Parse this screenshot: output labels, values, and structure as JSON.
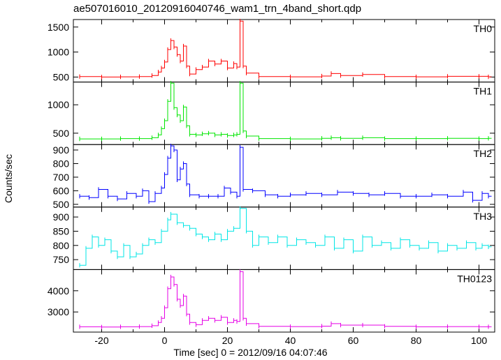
{
  "chart_data": {
    "type": "line",
    "title": "ae507016010_20120916040746_wam1_trn_4band_short.qdp",
    "xlabel": "Time [sec] 0 = 2012/09/16 04:07:46",
    "ylabel": "Counts/sec",
    "xlim": [
      -29,
      105
    ],
    "xticks": [
      -20,
      0,
      20,
      40,
      60,
      80,
      100
    ],
    "grid": false,
    "panels": [
      {
        "name": "TH0",
        "color": "#ff0000",
        "ylim": [
          400,
          1650
        ],
        "yticks": [
          500,
          1000,
          1500
        ],
        "series": [
          {
            "x": -27,
            "y": 510
          },
          {
            "x": -20,
            "y": 500
          },
          {
            "x": -14,
            "y": 505
          },
          {
            "x": -8,
            "y": 510
          },
          {
            "x": -4,
            "y": 530
          },
          {
            "x": -2,
            "y": 600
          },
          {
            "x": -1,
            "y": 680
          },
          {
            "x": 0,
            "y": 800
          },
          {
            "x": 1,
            "y": 1050
          },
          {
            "x": 2,
            "y": 1230
          },
          {
            "x": 3,
            "y": 1100
          },
          {
            "x": 4,
            "y": 950
          },
          {
            "x": 5,
            "y": 820
          },
          {
            "x": 6,
            "y": 1120
          },
          {
            "x": 7,
            "y": 720
          },
          {
            "x": 8,
            "y": 560
          },
          {
            "x": 10,
            "y": 650
          },
          {
            "x": 12,
            "y": 700
          },
          {
            "x": 14,
            "y": 820
          },
          {
            "x": 16,
            "y": 760
          },
          {
            "x": 18,
            "y": 820
          },
          {
            "x": 20,
            "y": 680
          },
          {
            "x": 22,
            "y": 770
          },
          {
            "x": 23,
            "y": 700
          },
          {
            "x": 24,
            "y": 1620
          },
          {
            "x": 25,
            "y": 720
          },
          {
            "x": 26,
            "y": 580
          },
          {
            "x": 30,
            "y": 510
          },
          {
            "x": 40,
            "y": 505
          },
          {
            "x": 50,
            "y": 520
          },
          {
            "x": 53,
            "y": 570
          },
          {
            "x": 56,
            "y": 530
          },
          {
            "x": 63,
            "y": 550
          },
          {
            "x": 70,
            "y": 510
          },
          {
            "x": 80,
            "y": 505
          },
          {
            "x": 90,
            "y": 515
          },
          {
            "x": 100,
            "y": 515
          },
          {
            "x": 103,
            "y": 505
          }
        ]
      },
      {
        "name": "TH1",
        "color": "#00e600",
        "ylim": [
          300,
          1400
        ],
        "yticks": [
          500,
          1000
        ],
        "series": [
          {
            "x": -27,
            "y": 400
          },
          {
            "x": -20,
            "y": 400
          },
          {
            "x": -14,
            "y": 405
          },
          {
            "x": -8,
            "y": 405
          },
          {
            "x": -4,
            "y": 420
          },
          {
            "x": -2,
            "y": 470
          },
          {
            "x": -1,
            "y": 580
          },
          {
            "x": 0,
            "y": 720
          },
          {
            "x": 1,
            "y": 1060
          },
          {
            "x": 2,
            "y": 1380
          },
          {
            "x": 3,
            "y": 950
          },
          {
            "x": 4,
            "y": 820
          },
          {
            "x": 5,
            "y": 720
          },
          {
            "x": 6,
            "y": 960
          },
          {
            "x": 7,
            "y": 630
          },
          {
            "x": 8,
            "y": 480
          },
          {
            "x": 10,
            "y": 470
          },
          {
            "x": 12,
            "y": 490
          },
          {
            "x": 14,
            "y": 500
          },
          {
            "x": 16,
            "y": 470
          },
          {
            "x": 18,
            "y": 480
          },
          {
            "x": 20,
            "y": 460
          },
          {
            "x": 22,
            "y": 470
          },
          {
            "x": 23,
            "y": 480
          },
          {
            "x": 24,
            "y": 1380
          },
          {
            "x": 25,
            "y": 540
          },
          {
            "x": 26,
            "y": 450
          },
          {
            "x": 30,
            "y": 405
          },
          {
            "x": 40,
            "y": 400
          },
          {
            "x": 50,
            "y": 410
          },
          {
            "x": 53,
            "y": 420
          },
          {
            "x": 56,
            "y": 410
          },
          {
            "x": 63,
            "y": 420
          },
          {
            "x": 70,
            "y": 405
          },
          {
            "x": 80,
            "y": 405
          },
          {
            "x": 90,
            "y": 410
          },
          {
            "x": 100,
            "y": 405
          },
          {
            "x": 103,
            "y": 410
          }
        ]
      },
      {
        "name": "TH2",
        "color": "#0000ff",
        "ylim": [
          480,
          940
        ],
        "yticks": [
          500,
          600,
          700,
          800,
          900
        ],
        "series": [
          {
            "x": -27,
            "y": 560
          },
          {
            "x": -24,
            "y": 550
          },
          {
            "x": -21,
            "y": 610
          },
          {
            "x": -18,
            "y": 560
          },
          {
            "x": -15,
            "y": 540
          },
          {
            "x": -12,
            "y": 580
          },
          {
            "x": -9,
            "y": 560
          },
          {
            "x": -7,
            "y": 600
          },
          {
            "x": -5,
            "y": 520
          },
          {
            "x": -3,
            "y": 580
          },
          {
            "x": -1,
            "y": 620
          },
          {
            "x": 0,
            "y": 720
          },
          {
            "x": 1,
            "y": 840
          },
          {
            "x": 2,
            "y": 930
          },
          {
            "x": 3,
            "y": 900
          },
          {
            "x": 4,
            "y": 680
          },
          {
            "x": 5,
            "y": 760
          },
          {
            "x": 6,
            "y": 800
          },
          {
            "x": 7,
            "y": 650
          },
          {
            "x": 8,
            "y": 570
          },
          {
            "x": 11,
            "y": 560
          },
          {
            "x": 14,
            "y": 560
          },
          {
            "x": 17,
            "y": 560
          },
          {
            "x": 19,
            "y": 620
          },
          {
            "x": 21,
            "y": 590
          },
          {
            "x": 23,
            "y": 560
          },
          {
            "x": 24,
            "y": 920
          },
          {
            "x": 25,
            "y": 610
          },
          {
            "x": 28,
            "y": 600
          },
          {
            "x": 32,
            "y": 570
          },
          {
            "x": 36,
            "y": 560
          },
          {
            "x": 40,
            "y": 570
          },
          {
            "x": 45,
            "y": 580
          },
          {
            "x": 50,
            "y": 570
          },
          {
            "x": 55,
            "y": 590
          },
          {
            "x": 60,
            "y": 580
          },
          {
            "x": 65,
            "y": 570
          },
          {
            "x": 70,
            "y": 580
          },
          {
            "x": 75,
            "y": 560
          },
          {
            "x": 80,
            "y": 560
          },
          {
            "x": 85,
            "y": 570
          },
          {
            "x": 90,
            "y": 560
          },
          {
            "x": 95,
            "y": 590
          },
          {
            "x": 98,
            "y": 530
          },
          {
            "x": 101,
            "y": 580
          },
          {
            "x": 103,
            "y": 560
          }
        ]
      },
      {
        "name": "TH3",
        "color": "#00e6e6",
        "ylim": [
          715,
          935
        ],
        "yticks": [
          750,
          800,
          850,
          900
        ],
        "series": [
          {
            "x": -27,
            "y": 730
          },
          {
            "x": -25,
            "y": 790
          },
          {
            "x": -23,
            "y": 830
          },
          {
            "x": -21,
            "y": 800
          },
          {
            "x": -19,
            "y": 820
          },
          {
            "x": -17,
            "y": 780
          },
          {
            "x": -15,
            "y": 760
          },
          {
            "x": -13,
            "y": 800
          },
          {
            "x": -11,
            "y": 760
          },
          {
            "x": -9,
            "y": 770
          },
          {
            "x": -7,
            "y": 800
          },
          {
            "x": -5,
            "y": 820
          },
          {
            "x": -3,
            "y": 810
          },
          {
            "x": -1,
            "y": 850
          },
          {
            "x": 1,
            "y": 890
          },
          {
            "x": 2,
            "y": 910
          },
          {
            "x": 4,
            "y": 880
          },
          {
            "x": 6,
            "y": 870
          },
          {
            "x": 8,
            "y": 860
          },
          {
            "x": 10,
            "y": 840
          },
          {
            "x": 12,
            "y": 830
          },
          {
            "x": 14,
            "y": 820
          },
          {
            "x": 16,
            "y": 840
          },
          {
            "x": 18,
            "y": 820
          },
          {
            "x": 20,
            "y": 850
          },
          {
            "x": 22,
            "y": 860
          },
          {
            "x": 24,
            "y": 930
          },
          {
            "x": 26,
            "y": 850
          },
          {
            "x": 28,
            "y": 800
          },
          {
            "x": 30,
            "y": 830
          },
          {
            "x": 33,
            "y": 810
          },
          {
            "x": 36,
            "y": 830
          },
          {
            "x": 39,
            "y": 800
          },
          {
            "x": 42,
            "y": 820
          },
          {
            "x": 45,
            "y": 810
          },
          {
            "x": 48,
            "y": 800
          },
          {
            "x": 51,
            "y": 830
          },
          {
            "x": 54,
            "y": 790
          },
          {
            "x": 57,
            "y": 820
          },
          {
            "x": 60,
            "y": 780
          },
          {
            "x": 63,
            "y": 830
          },
          {
            "x": 66,
            "y": 800
          },
          {
            "x": 69,
            "y": 810
          },
          {
            "x": 72,
            "y": 790
          },
          {
            "x": 75,
            "y": 820
          },
          {
            "x": 78,
            "y": 800
          },
          {
            "x": 81,
            "y": 790
          },
          {
            "x": 84,
            "y": 810
          },
          {
            "x": 87,
            "y": 780
          },
          {
            "x": 90,
            "y": 800
          },
          {
            "x": 93,
            "y": 790
          },
          {
            "x": 96,
            "y": 810
          },
          {
            "x": 99,
            "y": 790
          },
          {
            "x": 101,
            "y": 800
          },
          {
            "x": 103,
            "y": 795
          }
        ]
      },
      {
        "name": "TH0123",
        "color": "#e600e6",
        "ylim": [
          2050,
          5000
        ],
        "yticks": [
          3000,
          4000
        ],
        "series": [
          {
            "x": -27,
            "y": 2300
          },
          {
            "x": -20,
            "y": 2290
          },
          {
            "x": -14,
            "y": 2300
          },
          {
            "x": -8,
            "y": 2310
          },
          {
            "x": -4,
            "y": 2350
          },
          {
            "x": -2,
            "y": 2500
          },
          {
            "x": -1,
            "y": 2700
          },
          {
            "x": 0,
            "y": 3200
          },
          {
            "x": 1,
            "y": 4100
          },
          {
            "x": 2,
            "y": 4650
          },
          {
            "x": 3,
            "y": 4300
          },
          {
            "x": 4,
            "y": 3600
          },
          {
            "x": 5,
            "y": 3300
          },
          {
            "x": 6,
            "y": 3750
          },
          {
            "x": 7,
            "y": 2900
          },
          {
            "x": 8,
            "y": 2500
          },
          {
            "x": 10,
            "y": 2400
          },
          {
            "x": 12,
            "y": 2600
          },
          {
            "x": 14,
            "y": 2700
          },
          {
            "x": 16,
            "y": 2600
          },
          {
            "x": 18,
            "y": 2750
          },
          {
            "x": 20,
            "y": 2500
          },
          {
            "x": 22,
            "y": 2600
          },
          {
            "x": 23,
            "y": 2550
          },
          {
            "x": 24,
            "y": 4900
          },
          {
            "x": 25,
            "y": 2700
          },
          {
            "x": 26,
            "y": 2450
          },
          {
            "x": 30,
            "y": 2320
          },
          {
            "x": 40,
            "y": 2310
          },
          {
            "x": 50,
            "y": 2330
          },
          {
            "x": 53,
            "y": 2450
          },
          {
            "x": 56,
            "y": 2380
          },
          {
            "x": 63,
            "y": 2380
          },
          {
            "x": 70,
            "y": 2320
          },
          {
            "x": 80,
            "y": 2300
          },
          {
            "x": 90,
            "y": 2310
          },
          {
            "x": 100,
            "y": 2300
          },
          {
            "x": 103,
            "y": 2300
          }
        ]
      }
    ]
  }
}
